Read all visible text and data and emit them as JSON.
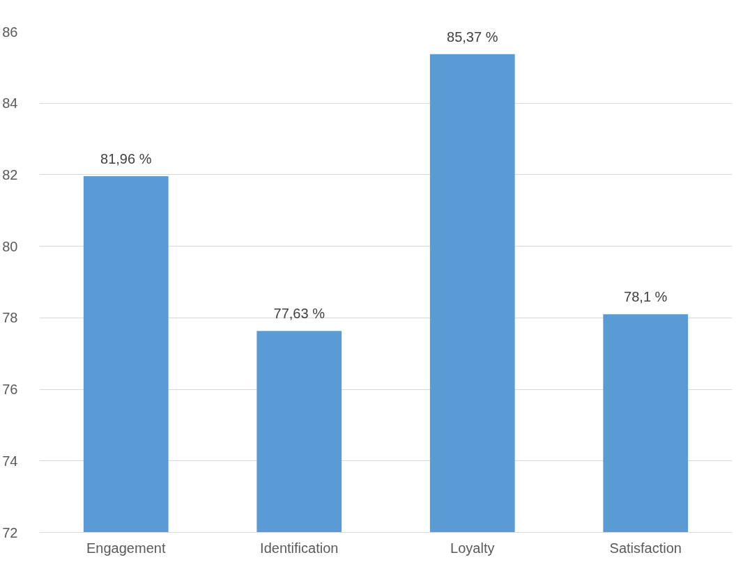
{
  "chart_data": {
    "type": "bar",
    "categories": [
      "Engagement",
      "Identification",
      "Loyalty",
      "Satisfaction"
    ],
    "values": [
      81.96,
      77.63,
      85.37,
      78.1
    ],
    "value_labels": [
      "81,96 %",
      "77,63 %",
      "85,37 %",
      "78,1 %"
    ],
    "color": "#5b9bd5",
    "ylim": [
      72,
      86
    ],
    "yticks": [
      72,
      74,
      76,
      78,
      80,
      82,
      84,
      86
    ],
    "grid": "y"
  }
}
